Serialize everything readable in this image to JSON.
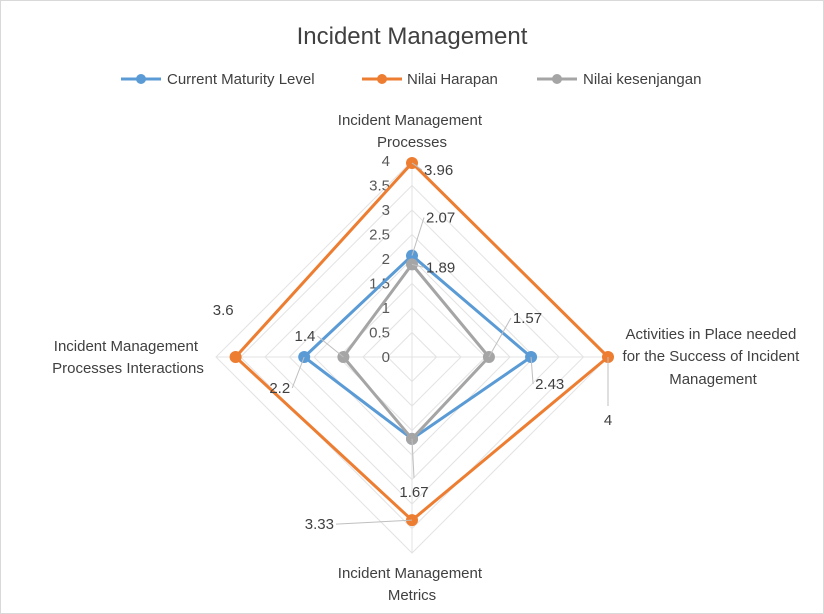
{
  "chart_data": {
    "type": "radar",
    "title": "Incident Management",
    "axes": [
      {
        "name": "Incident Management Processes",
        "lines": [
          "Incident Management",
          "Processes"
        ]
      },
      {
        "name": "Activities in Place needed for the Success of Incident Management",
        "lines": [
          "Activities in Place needed",
          "for the Success of Incident",
          "Management"
        ]
      },
      {
        "name": "Incident Management Metrics",
        "lines": [
          "Incident Management",
          "Metrics"
        ]
      },
      {
        "name": "Incident Management Processes Interactions",
        "lines": [
          "Incident Management",
          "Processes Interactions"
        ]
      }
    ],
    "ticks": [
      "0",
      "0.5",
      "1",
      "1.5",
      "2",
      "2.5",
      "3",
      "3.5",
      "4"
    ],
    "range": [
      0,
      4
    ],
    "grid": true,
    "legend_position": "top",
    "series": [
      {
        "name": "Current Maturity Level",
        "color": "#5b9bd5",
        "values": [
          2.07,
          2.43,
          1.67,
          2.2
        ]
      },
      {
        "name": "Nilai Harapan",
        "color": "#ed7d31",
        "values": [
          3.96,
          4,
          3.33,
          3.6
        ]
      },
      {
        "name": "Nilai kesenjangan",
        "color": "#a5a5a5",
        "values": [
          1.89,
          1.57,
          1.67,
          1.4
        ]
      }
    ],
    "data_labels": {
      "current": [
        "2.07",
        "2.43",
        "",
        "2.2"
      ],
      "harapan": [
        "3.96",
        "4",
        "3.33",
        "3.6"
      ],
      "gap": [
        "1.89",
        "1.57",
        "1.67",
        "1.4"
      ]
    }
  }
}
